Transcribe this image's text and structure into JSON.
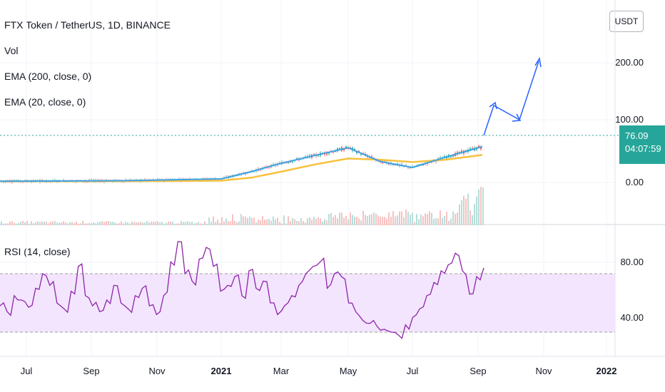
{
  "header": {
    "title": "FTX Token / TetherUS, 1D, BINANCE",
    "indicators": [
      "Vol",
      "EMA (200, close, 0)",
      "EMA (20, close, 0)"
    ]
  },
  "currency_badge": "USDT",
  "price_tag": {
    "price": "76.09",
    "countdown": "04:07:59"
  },
  "rsi_panel": {
    "label": "RSI (14, close)"
  },
  "colors": {
    "ema200": "#f7c13d",
    "ema20": "#3ea3e6",
    "rsi": "#8e24aa",
    "band": "#f3e5fd",
    "arrow": "#2962ff",
    "up": "#26a69a",
    "down": "#ef5350"
  },
  "chart_data": [
    {
      "type": "line",
      "title": "FTX Token / TetherUS, 1D, BINANCE",
      "y_ticks": [
        "200.00",
        "100.00",
        "0.00"
      ],
      "x_ticks": [
        "Jul",
        "Sep",
        "Nov",
        "2021",
        "Mar",
        "May",
        "Jul",
        "Sep",
        "Nov",
        "2022"
      ],
      "scale": "linear",
      "series": [
        {
          "name": "EMA (20, close, 0)",
          "points": [
            [
              "Jun 2020",
              2
            ],
            [
              "Oct 2020",
              3
            ],
            [
              "Jan 2021",
              6
            ],
            [
              "Feb 2021",
              18
            ],
            [
              "Mar 2021",
              32
            ],
            [
              "Apr 2021",
              45
            ],
            [
              "May 2021",
              58
            ],
            [
              "Jun 2021",
              35
            ],
            [
              "Jul 2021",
              25
            ],
            [
              "Aug 2021",
              42
            ],
            [
              "Sep 2021",
              60
            ]
          ]
        },
        {
          "name": "EMA (200, close, 0)",
          "points": [
            [
              "Jun 2020",
              2
            ],
            [
              "Oct 2020",
              2
            ],
            [
              "Jan 2021",
              3
            ],
            [
              "Feb 2021",
              8
            ],
            [
              "Mar 2021",
              18
            ],
            [
              "Apr 2021",
              30
            ],
            [
              "May 2021",
              40
            ],
            [
              "Jun 2021",
              38
            ],
            [
              "Jul 2021",
              34
            ],
            [
              "Aug 2021",
              38
            ],
            [
              "Sep 2021",
              46
            ]
          ]
        }
      ],
      "last_price": 76.09,
      "projection_arrow": [
        [
          "Sep 2021",
          76
        ],
        [
          "Sep 2021",
          120
        ],
        [
          "Oct 2021",
          99
        ],
        [
          "Oct 2021",
          198
        ]
      ]
    },
    {
      "type": "line",
      "title": "RSI (14, close)",
      "y_ticks": [
        "80.00",
        "40.00"
      ],
      "band": [
        30,
        70
      ],
      "series": [
        {
          "name": "RSI (14, close)",
          "values": [
            48,
            44,
            55,
            52,
            47,
            60,
            70,
            62,
            50,
            46,
            58,
            75,
            55,
            48,
            44,
            52,
            62,
            50,
            46,
            55,
            60,
            48,
            42,
            55,
            78,
            92,
            70,
            65,
            80,
            88,
            75,
            58,
            62,
            68,
            55,
            72,
            60,
            65,
            50,
            42,
            48,
            55,
            62,
            70,
            75,
            78,
            60,
            70,
            68,
            50,
            44,
            38,
            36,
            34,
            32,
            30,
            28,
            35,
            40,
            46,
            55,
            64,
            72,
            76,
            84,
            72,
            56,
            68,
            74
          ]
        }
      ]
    }
  ]
}
